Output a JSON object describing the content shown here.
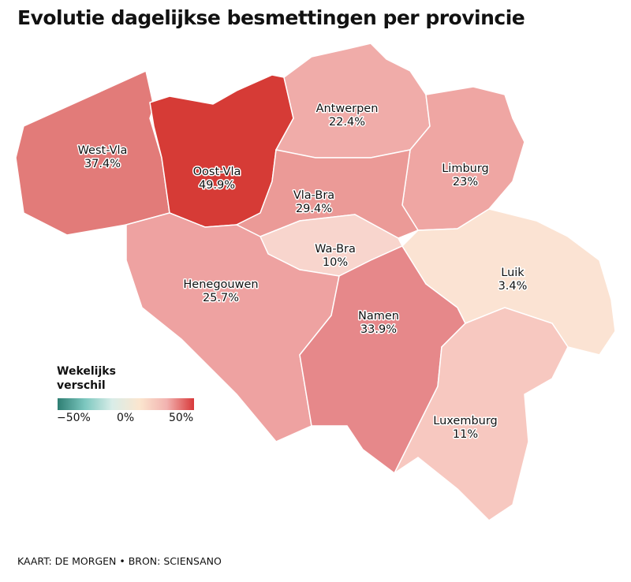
{
  "title": "Evolutie dagelijkse besmettingen per provincie",
  "legend": {
    "title": "Wekelijks verschil",
    "ticks": [
      "−50%",
      "0%",
      "50%"
    ],
    "colors": [
      "#2e7e73",
      "#fbe6cf",
      "#d8393a"
    ]
  },
  "provinces": [
    {
      "name": "West-Vla",
      "value": "37.4%",
      "color": "#e27b79"
    },
    {
      "name": "Oost-Vla",
      "value": "49.9%",
      "color": "#d63b36"
    },
    {
      "name": "Antwerpen",
      "value": "22.4%",
      "color": "#f0aca9"
    },
    {
      "name": "Limburg",
      "value": "23%",
      "color": "#efa6a3"
    },
    {
      "name": "Vla-Bra",
      "value": "29.4%",
      "color": "#eb9a97"
    },
    {
      "name": "Wa-Bra",
      "value": "10%",
      "color": "#f8d5cd"
    },
    {
      "name": "Henegouwen",
      "value": "25.7%",
      "color": "#eea2a1"
    },
    {
      "name": "Namen",
      "value": "33.9%",
      "color": "#e6888a"
    },
    {
      "name": "Luik",
      "value": "3.4%",
      "color": "#fbe3d3"
    },
    {
      "name": "Luxemburg",
      "value": "11%",
      "color": "#f7c8c0"
    }
  ],
  "source": "KAART: DE MORGEN • BRON: SCIENSANO"
}
